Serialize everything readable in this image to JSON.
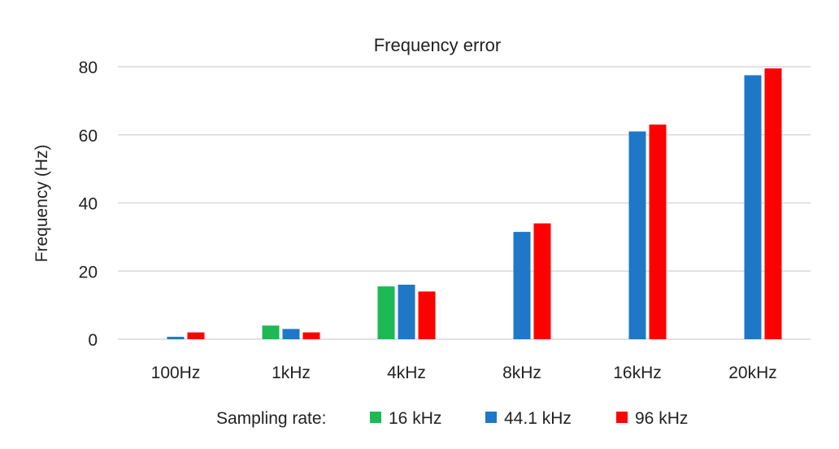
{
  "chart_data": {
    "type": "bar",
    "title": "Frequency error",
    "xlabel": "",
    "ylabel": "Frequency (Hz)",
    "ylim": [
      0,
      80
    ],
    "yticks": [
      0,
      20,
      40,
      60,
      80
    ],
    "grid": true,
    "legend_position": "bottom",
    "legend_title": "Sampling rate:",
    "categories": [
      "100Hz",
      "1kHz",
      "4kHz",
      "8kHz",
      "16kHz",
      "20kHz"
    ],
    "series": [
      {
        "name": "16 kHz",
        "color": "#1db954",
        "values": [
          null,
          4,
          15.5,
          null,
          null,
          null
        ]
      },
      {
        "name": "44.1 kHz",
        "color": "#1f77c8",
        "values": [
          0.7,
          3,
          16,
          31.5,
          61,
          77.5
        ]
      },
      {
        "name": "96 kHz",
        "color": "#ff0000",
        "values": [
          2,
          2,
          14,
          34,
          63,
          79.5
        ]
      }
    ]
  }
}
